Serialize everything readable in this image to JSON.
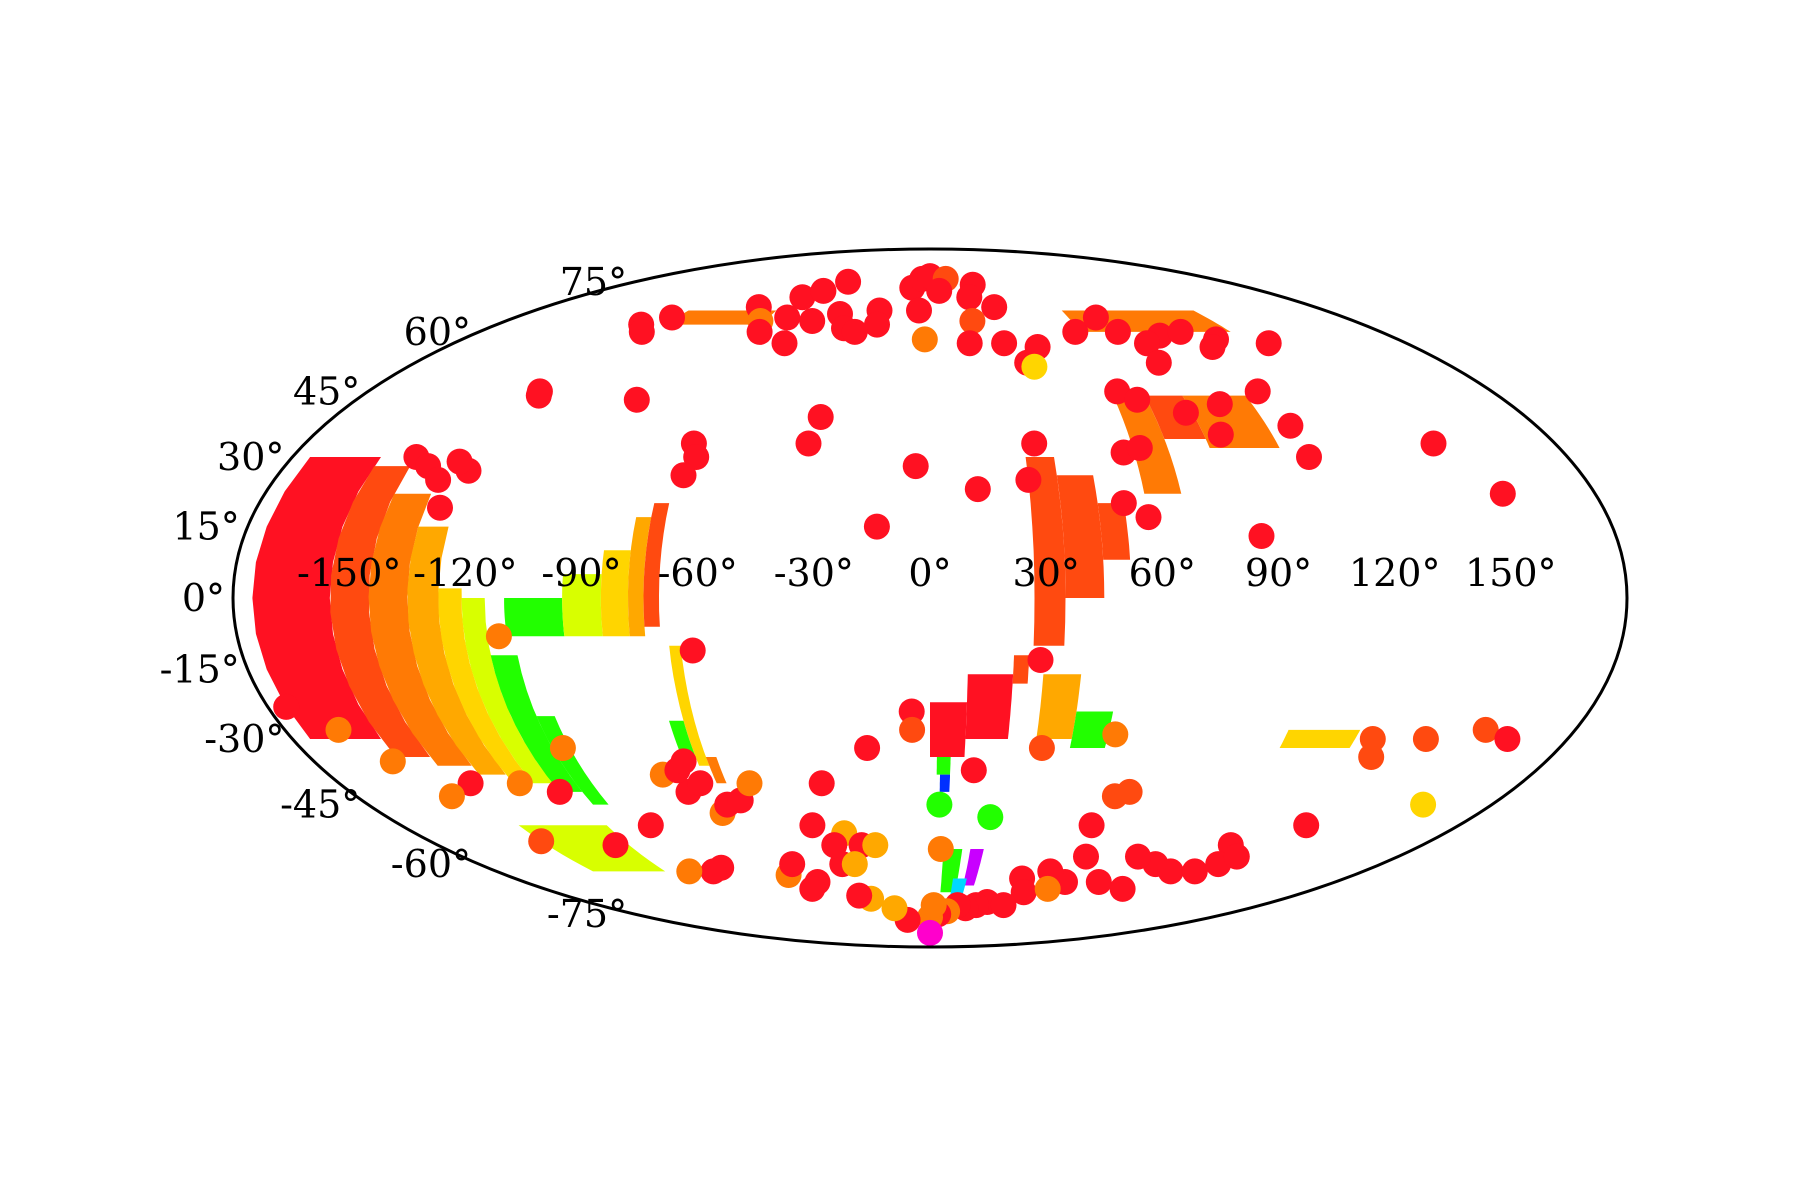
{
  "chart_data": {
    "type": "scatter",
    "projection": "mollweide",
    "grid": false,
    "legend": "none",
    "title": "",
    "lon_tick_labels": [
      "-150°",
      "-120°",
      "-90°",
      "-60°",
      "-30°",
      "0°",
      "30°",
      "60°",
      "90°",
      "120°",
      "150°"
    ],
    "lat_tick_labels": [
      "75°",
      "60°",
      "45°",
      "30°",
      "15°",
      "0°",
      "-15°",
      "-30°",
      "-45°",
      "-60°",
      "-75°"
    ],
    "lon_ticks": [
      -150,
      -120,
      -90,
      -60,
      -30,
      0,
      30,
      60,
      90,
      120,
      150
    ],
    "lat_ticks": [
      75,
      60,
      45,
      30,
      15,
      0,
      -15,
      -30,
      -45,
      -60,
      -75
    ],
    "colors": {
      "red": "#ff1122",
      "orange-red": "#ff4a10",
      "orange": "#ff7a05",
      "amber": "#ffa800",
      "yellow": "#ffd500",
      "yellow-green": "#d8ff00",
      "green": "#22ff00",
      "cyan": "#00d8ff",
      "blue": "#0030ff",
      "magenta": "#ff00cc",
      "violet": "#c800ff"
    },
    "points": [
      {
        "lon": -80,
        "lat": 67,
        "c": "red"
      },
      {
        "lon": -65,
        "lat": 70,
        "c": "red"
      },
      {
        "lon": -58,
        "lat": 72,
        "c": "red"
      },
      {
        "lon": -50,
        "lat": 75,
        "c": "red"
      },
      {
        "lon": -72,
        "lat": 63,
        "c": "orange"
      },
      {
        "lon": -62,
        "lat": 64,
        "c": "red"
      },
      {
        "lon": -50,
        "lat": 63,
        "c": "red"
      },
      {
        "lon": -40,
        "lat": 65,
        "c": "red"
      },
      {
        "lon": -68,
        "lat": 60,
        "c": "red"
      },
      {
        "lon": -55,
        "lat": 57,
        "c": "red"
      },
      {
        "lon": -35,
        "lat": 61,
        "c": "red"
      },
      {
        "lon": -23,
        "lat": 66,
        "c": "red"
      },
      {
        "lon": -10,
        "lat": 73,
        "c": "red"
      },
      {
        "lon": -5,
        "lat": 76,
        "c": "red"
      },
      {
        "lon": 0,
        "lat": 77,
        "c": "red"
      },
      {
        "lon": 10,
        "lat": 76,
        "c": "orange-red"
      },
      {
        "lon": 5,
        "lat": 72,
        "c": "red"
      },
      {
        "lon": 25,
        "lat": 74,
        "c": "red"
      },
      {
        "lon": 20,
        "lat": 70,
        "c": "red"
      },
      {
        "lon": 30,
        "lat": 67,
        "c": "red"
      },
      {
        "lon": 18,
        "lat": 63,
        "c": "orange-red"
      },
      {
        "lon": -22,
        "lat": 62,
        "c": "red"
      },
      {
        "lon": -30,
        "lat": 60,
        "c": "red"
      },
      {
        "lon": -5,
        "lat": 66,
        "c": "red"
      },
      {
        "lon": -2,
        "lat": 58,
        "c": "orange"
      },
      {
        "lon": 15,
        "lat": 57,
        "c": "red"
      },
      {
        "lon": 28,
        "lat": 57,
        "c": "red"
      },
      {
        "lon": 40,
        "lat": 56,
        "c": "red"
      },
      {
        "lon": 34,
        "lat": 52,
        "c": "red"
      },
      {
        "lon": 36,
        "lat": 51,
        "c": "yellow"
      },
      {
        "lon": 58,
        "lat": 60,
        "c": "red"
      },
      {
        "lon": 72,
        "lat": 64,
        "c": "red"
      },
      {
        "lon": 75,
        "lat": 60,
        "c": "red"
      },
      {
        "lon": 90,
        "lat": 59,
        "c": "red"
      },
      {
        "lon": 100,
        "lat": 60,
        "c": "red"
      },
      {
        "lon": 110,
        "lat": 58,
        "c": "red"
      },
      {
        "lon": 105,
        "lat": 56,
        "c": "red"
      },
      {
        "lon": 82,
        "lat": 57,
        "c": "red"
      },
      {
        "lon": 80,
        "lat": 52,
        "c": "red"
      },
      {
        "lon": 128,
        "lat": 57,
        "c": "red"
      },
      {
        "lon": 105,
        "lat": 45,
        "c": "red"
      },
      {
        "lon": 60,
        "lat": 45,
        "c": "red"
      },
      {
        "lon": 65,
        "lat": 43,
        "c": "red"
      },
      {
        "lon": 78,
        "lat": 40,
        "c": "red"
      },
      {
        "lon": 90,
        "lat": 42,
        "c": "red"
      },
      {
        "lon": 107,
        "lat": 37,
        "c": "red"
      },
      {
        "lon": 55,
        "lat": 31,
        "c": "red"
      },
      {
        "lon": 60,
        "lat": 32,
        "c": "red"
      },
      {
        "lon": 85,
        "lat": 35,
        "c": "red"
      },
      {
        "lon": 107,
        "lat": 30,
        "c": "red"
      },
      {
        "lon": 145,
        "lat": 33,
        "c": "red"
      },
      {
        "lon": 155,
        "lat": 22,
        "c": "red"
      },
      {
        "lon": 30,
        "lat": 33,
        "c": "red"
      },
      {
        "lon": 27,
        "lat": 25,
        "c": "red"
      },
      {
        "lon": 13,
        "lat": 23,
        "c": "red"
      },
      {
        "lon": -4,
        "lat": 28,
        "c": "red"
      },
      {
        "lon": -14,
        "lat": 15,
        "c": "red"
      },
      {
        "lon": 58,
        "lat": 17,
        "c": "red"
      },
      {
        "lon": 87,
        "lat": 13,
        "c": "red"
      },
      {
        "lon": 52,
        "lat": 20,
        "c": "red"
      },
      {
        "lon": -33,
        "lat": 39,
        "c": "red"
      },
      {
        "lon": -35,
        "lat": 33,
        "c": "red"
      },
      {
        "lon": -92,
        "lat": 43,
        "c": "red"
      },
      {
        "lon": -125,
        "lat": 45,
        "c": "red"
      },
      {
        "lon": -124,
        "lat": 44,
        "c": "red"
      },
      {
        "lon": -128,
        "lat": 27,
        "c": "red"
      },
      {
        "lon": -68,
        "lat": 33,
        "c": "red"
      },
      {
        "lon": -66,
        "lat": 30,
        "c": "red"
      },
      {
        "lon": -68,
        "lat": 26,
        "c": "red"
      },
      {
        "lon": -145,
        "lat": 30,
        "c": "red"
      },
      {
        "lon": -140,
        "lat": 28,
        "c": "red"
      },
      {
        "lon": -135,
        "lat": 25,
        "c": "red"
      },
      {
        "lon": -132,
        "lat": 29,
        "c": "red"
      },
      {
        "lon": -131,
        "lat": 19,
        "c": "red"
      },
      {
        "lon": -120,
        "lat": 62,
        "c": "red"
      },
      {
        "lon": -115,
        "lat": 60,
        "c": "red"
      },
      {
        "lon": -112,
        "lat": 64,
        "c": "red"
      },
      {
        "lon": -112,
        "lat": -8,
        "c": "orange"
      },
      {
        "lon": -62,
        "lat": -11,
        "c": "red"
      },
      {
        "lon": 29,
        "lat": -13,
        "c": "red"
      },
      {
        "lon": -5,
        "lat": -24,
        "c": "red"
      },
      {
        "lon": -5,
        "lat": -28,
        "c": "orange-red"
      },
      {
        "lon": -18,
        "lat": -32,
        "c": "red"
      },
      {
        "lon": 13,
        "lat": -37,
        "c": "red"
      },
      {
        "lon": -33,
        "lat": -40,
        "c": "red"
      },
      {
        "lon": -115,
        "lat": -42,
        "c": "red"
      },
      {
        "lon": -140,
        "lat": -40,
        "c": "red"
      },
      {
        "lon": -157,
        "lat": -35,
        "c": "orange"
      },
      {
        "lon": -175,
        "lat": -23,
        "c": "red"
      },
      {
        "lon": -165,
        "lat": -28,
        "c": "orange"
      },
      {
        "lon": -150,
        "lat": -43,
        "c": "orange"
      },
      {
        "lon": -140,
        "lat": -54,
        "c": "orange-red"
      },
      {
        "lon": -125,
        "lat": -40,
        "c": "orange"
      },
      {
        "lon": -105,
        "lat": -32,
        "c": "orange"
      },
      {
        "lon": -95,
        "lat": -50,
        "c": "red"
      },
      {
        "lon": -80,
        "lat": -38,
        "c": "orange"
      },
      {
        "lon": -75,
        "lat": -42,
        "c": "red"
      },
      {
        "lon": -70,
        "lat": -40,
        "c": "red"
      },
      {
        "lon": -75,
        "lat": -37,
        "c": "red"
      },
      {
        "lon": -72,
        "lat": -35,
        "c": "red"
      },
      {
        "lon": -68,
        "lat": -47,
        "c": "orange"
      },
      {
        "lon": -65,
        "lat": -45,
        "c": "red"
      },
      {
        "lon": -60,
        "lat": -44,
        "c": "red"
      },
      {
        "lon": -55,
        "lat": -40,
        "c": "orange"
      },
      {
        "lon": -40,
        "lat": -50,
        "c": "red"
      },
      {
        "lon": -30,
        "lat": -52,
        "c": "amber"
      },
      {
        "lon": -25,
        "lat": -55,
        "c": "red"
      },
      {
        "lon": 3,
        "lat": -45,
        "c": "green"
      },
      {
        "lon": 20,
        "lat": -48,
        "c": "green"
      },
      {
        "lon": 4,
        "lat": -56,
        "c": "orange"
      },
      {
        "lon": 32,
        "lat": -32,
        "c": "orange-red"
      },
      {
        "lon": 52,
        "lat": -29,
        "c": "orange"
      },
      {
        "lon": 58,
        "lat": -43,
        "c": "orange-red"
      },
      {
        "lon": 62,
        "lat": -42,
        "c": "orange-red"
      },
      {
        "lon": 55,
        "lat": -50,
        "c": "red"
      },
      {
        "lon": 90,
        "lat": -60,
        "c": "red"
      },
      {
        "lon": 110,
        "lat": -55,
        "c": "red"
      },
      {
        "lon": 125,
        "lat": -30,
        "c": "orange-red"
      },
      {
        "lon": 128,
        "lat": -34,
        "c": "orange-red"
      },
      {
        "lon": 140,
        "lat": -30,
        "c": "orange-red"
      },
      {
        "lon": 155,
        "lat": -28,
        "c": "orange-red"
      },
      {
        "lon": 163,
        "lat": -30,
        "c": "red"
      },
      {
        "lon": 158,
        "lat": -45,
        "c": "yellow"
      },
      {
        "lon": 128,
        "lat": -50,
        "c": "red"
      },
      {
        "lon": 100,
        "lat": -62,
        "c": "red"
      },
      {
        "lon": 110,
        "lat": -62,
        "c": "red"
      },
      {
        "lon": 115,
        "lat": -60,
        "c": "red"
      },
      {
        "lon": 118,
        "lat": -58,
        "c": "red"
      },
      {
        "lon": 90,
        "lat": -67,
        "c": "red"
      },
      {
        "lon": 75,
        "lat": -65,
        "c": "red"
      },
      {
        "lon": 60,
        "lat": -65,
        "c": "red"
      },
      {
        "lon": 50,
        "lat": -62,
        "c": "red"
      },
      {
        "lon": 40,
        "lat": -64,
        "c": "red"
      },
      {
        "lon": 30,
        "lat": -71,
        "c": "red"
      },
      {
        "lon": 25,
        "lat": -72,
        "c": "red"
      },
      {
        "lon": 20,
        "lat": -73,
        "c": "red"
      },
      {
        "lon": 15,
        "lat": -72,
        "c": "red"
      },
      {
        "lon": 10,
        "lat": -74,
        "c": "orange"
      },
      {
        "lon": 5,
        "lat": -75,
        "c": "red"
      },
      {
        "lon": 0,
        "lat": -76,
        "c": "orange"
      },
      {
        "lon": 2,
        "lat": -72,
        "c": "orange"
      },
      {
        "lon": 0,
        "lat": -82,
        "c": "magenta"
      },
      {
        "lon": -15,
        "lat": -77,
        "c": "red"
      },
      {
        "lon": -20,
        "lat": -73,
        "c": "amber"
      },
      {
        "lon": -30,
        "lat": -70,
        "c": "amber"
      },
      {
        "lon": -35,
        "lat": -69,
        "c": "red"
      },
      {
        "lon": -50,
        "lat": -65,
        "c": "red"
      },
      {
        "lon": -55,
        "lat": -67,
        "c": "red"
      },
      {
        "lon": -60,
        "lat": -63,
        "c": "orange"
      },
      {
        "lon": -85,
        "lat": -61,
        "c": "red"
      },
      {
        "lon": -90,
        "lat": -62,
        "c": "red"
      },
      {
        "lon": -100,
        "lat": -62,
        "c": "orange"
      },
      {
        "lon": -115,
        "lat": -55,
        "c": "red"
      },
      {
        "lon": -55,
        "lat": -60,
        "c": "red"
      },
      {
        "lon": -35,
        "lat": -60,
        "c": "red"
      },
      {
        "lon": -30,
        "lat": -60,
        "c": "amber"
      },
      {
        "lon": -20,
        "lat": -55,
        "c": "amber"
      },
      {
        "lon": -35,
        "lat": -55,
        "c": "red"
      },
      {
        "lon": 45,
        "lat": -68,
        "c": "red"
      },
      {
        "lon": 40,
        "lat": -72,
        "c": "red"
      },
      {
        "lon": 55,
        "lat": -67,
        "c": "orange"
      },
      {
        "lon": 60,
        "lat": -58,
        "c": "red"
      },
      {
        "lon": 80,
        "lat": -58,
        "c": "red"
      }
    ],
    "regions": [
      {
        "lon_min": -175,
        "lon_max": -155,
        "lat_min": -30,
        "lat_max": 30,
        "c": "red"
      },
      {
        "lon_min": -155,
        "lon_max": -145,
        "lat_min": -34,
        "lat_max": 28,
        "c": "orange-red"
      },
      {
        "lon_min": -145,
        "lon_max": -135,
        "lat_min": -36,
        "lat_max": 22,
        "c": "orange"
      },
      {
        "lon_min": -135,
        "lon_max": -127,
        "lat_min": -38,
        "lat_max": 15,
        "c": "amber"
      },
      {
        "lon_min": -127,
        "lon_max": -121,
        "lat_min": -40,
        "lat_max": 2,
        "c": "yellow"
      },
      {
        "lon_min": -121,
        "lon_max": -115,
        "lat_min": -40,
        "lat_max": 0,
        "c": "yellow-green"
      },
      {
        "lon_min": -115,
        "lon_max": -108,
        "lat_min": -42,
        "lat_max": -12,
        "c": "green"
      },
      {
        "lon_min": -108,
        "lon_max": -103,
        "lat_min": -45,
        "lat_max": -25,
        "c": "green"
      },
      {
        "lon_min": -110,
        "lon_max": -95,
        "lat_min": -8,
        "lat_max": 0,
        "c": "green"
      },
      {
        "lon_min": -95,
        "lon_max": -85,
        "lat_min": -8,
        "lat_max": 5,
        "c": "yellow-green"
      },
      {
        "lon_min": -85,
        "lon_max": -78,
        "lat_min": -8,
        "lat_max": 10,
        "c": "yellow"
      },
      {
        "lon_min": -78,
        "lon_max": -74,
        "lat_min": -8,
        "lat_max": 17,
        "c": "amber"
      },
      {
        "lon_min": -74,
        "lon_max": -70,
        "lat_min": -6,
        "lat_max": 20,
        "c": "orange-red"
      },
      {
        "lon_min": -68,
        "lon_max": -65,
        "lat_min": -36,
        "lat_max": -10,
        "c": "yellow"
      },
      {
        "lon_min": -72,
        "lon_max": -68,
        "lat_min": -34,
        "lat_max": -26,
        "c": "green"
      },
      {
        "lon_min": -65,
        "lon_max": -62,
        "lat_min": -40,
        "lat_max": -34,
        "c": "orange"
      },
      {
        "lon_min": 27,
        "lon_max": 35,
        "lat_min": -10,
        "lat_max": 30,
        "c": "orange-red"
      },
      {
        "lon_min": 35,
        "lon_max": 45,
        "lat_min": 0,
        "lat_max": 26,
        "c": "orange-red"
      },
      {
        "lon_min": 45,
        "lon_max": 52,
        "lat_min": 8,
        "lat_max": 20,
        "c": "orange-red"
      },
      {
        "lon_min": 58,
        "lon_max": 68,
        "lat_min": 22,
        "lat_max": 44,
        "c": "orange"
      },
      {
        "lon_min": 68,
        "lon_max": 80,
        "lat_min": 34,
        "lat_max": 44,
        "c": "orange-red"
      },
      {
        "lon_min": 80,
        "lon_max": 100,
        "lat_min": 32,
        "lat_max": 44,
        "c": "orange"
      },
      {
        "lon_min": 0,
        "lon_max": 10,
        "lat_min": -34,
        "lat_max": -22,
        "c": "red"
      },
      {
        "lon_min": 10,
        "lon_max": 22,
        "lat_min": -30,
        "lat_max": -16,
        "c": "red"
      },
      {
        "lon_min": 22,
        "lon_max": 26,
        "lat_min": -18,
        "lat_max": -12,
        "c": "orange-red"
      },
      {
        "lon_min": 2,
        "lon_max": 6,
        "lat_min": -38,
        "lat_max": -34,
        "c": "green"
      },
      {
        "lon_min": 3,
        "lon_max": 6,
        "lat_min": -42,
        "lat_max": -38,
        "c": "blue"
      },
      {
        "lon_min": 30,
        "lon_max": 40,
        "lat_min": -30,
        "lat_max": -16,
        "c": "amber"
      },
      {
        "lon_min": 40,
        "lon_max": 50,
        "lat_min": -32,
        "lat_max": -24,
        "c": "green"
      },
      {
        "lon_min": 100,
        "lon_max": 120,
        "lat_min": -32,
        "lat_max": -28,
        "c": "yellow"
      },
      {
        "lon_min": -110,
        "lon_max": -70,
        "lat_min": 62,
        "lat_max": 66,
        "c": "orange"
      },
      {
        "lon_min": 60,
        "lon_max": 120,
        "lat_min": 60,
        "lat_max": 66,
        "c": "orange"
      },
      {
        "lon_min": -140,
        "lon_max": -110,
        "lat_min": -62,
        "lat_max": -50,
        "c": "yellow-green"
      },
      {
        "lon_min": 5,
        "lon_max": 12,
        "lat_min": -68,
        "lat_max": -56,
        "c": "green"
      },
      {
        "lon_min": 15,
        "lon_max": 20,
        "lat_min": -66,
        "lat_max": -56,
        "c": "violet"
      },
      {
        "lon_min": 10,
        "lon_max": 16,
        "lat_min": -70,
        "lat_max": -64,
        "c": "cyan"
      }
    ]
  }
}
